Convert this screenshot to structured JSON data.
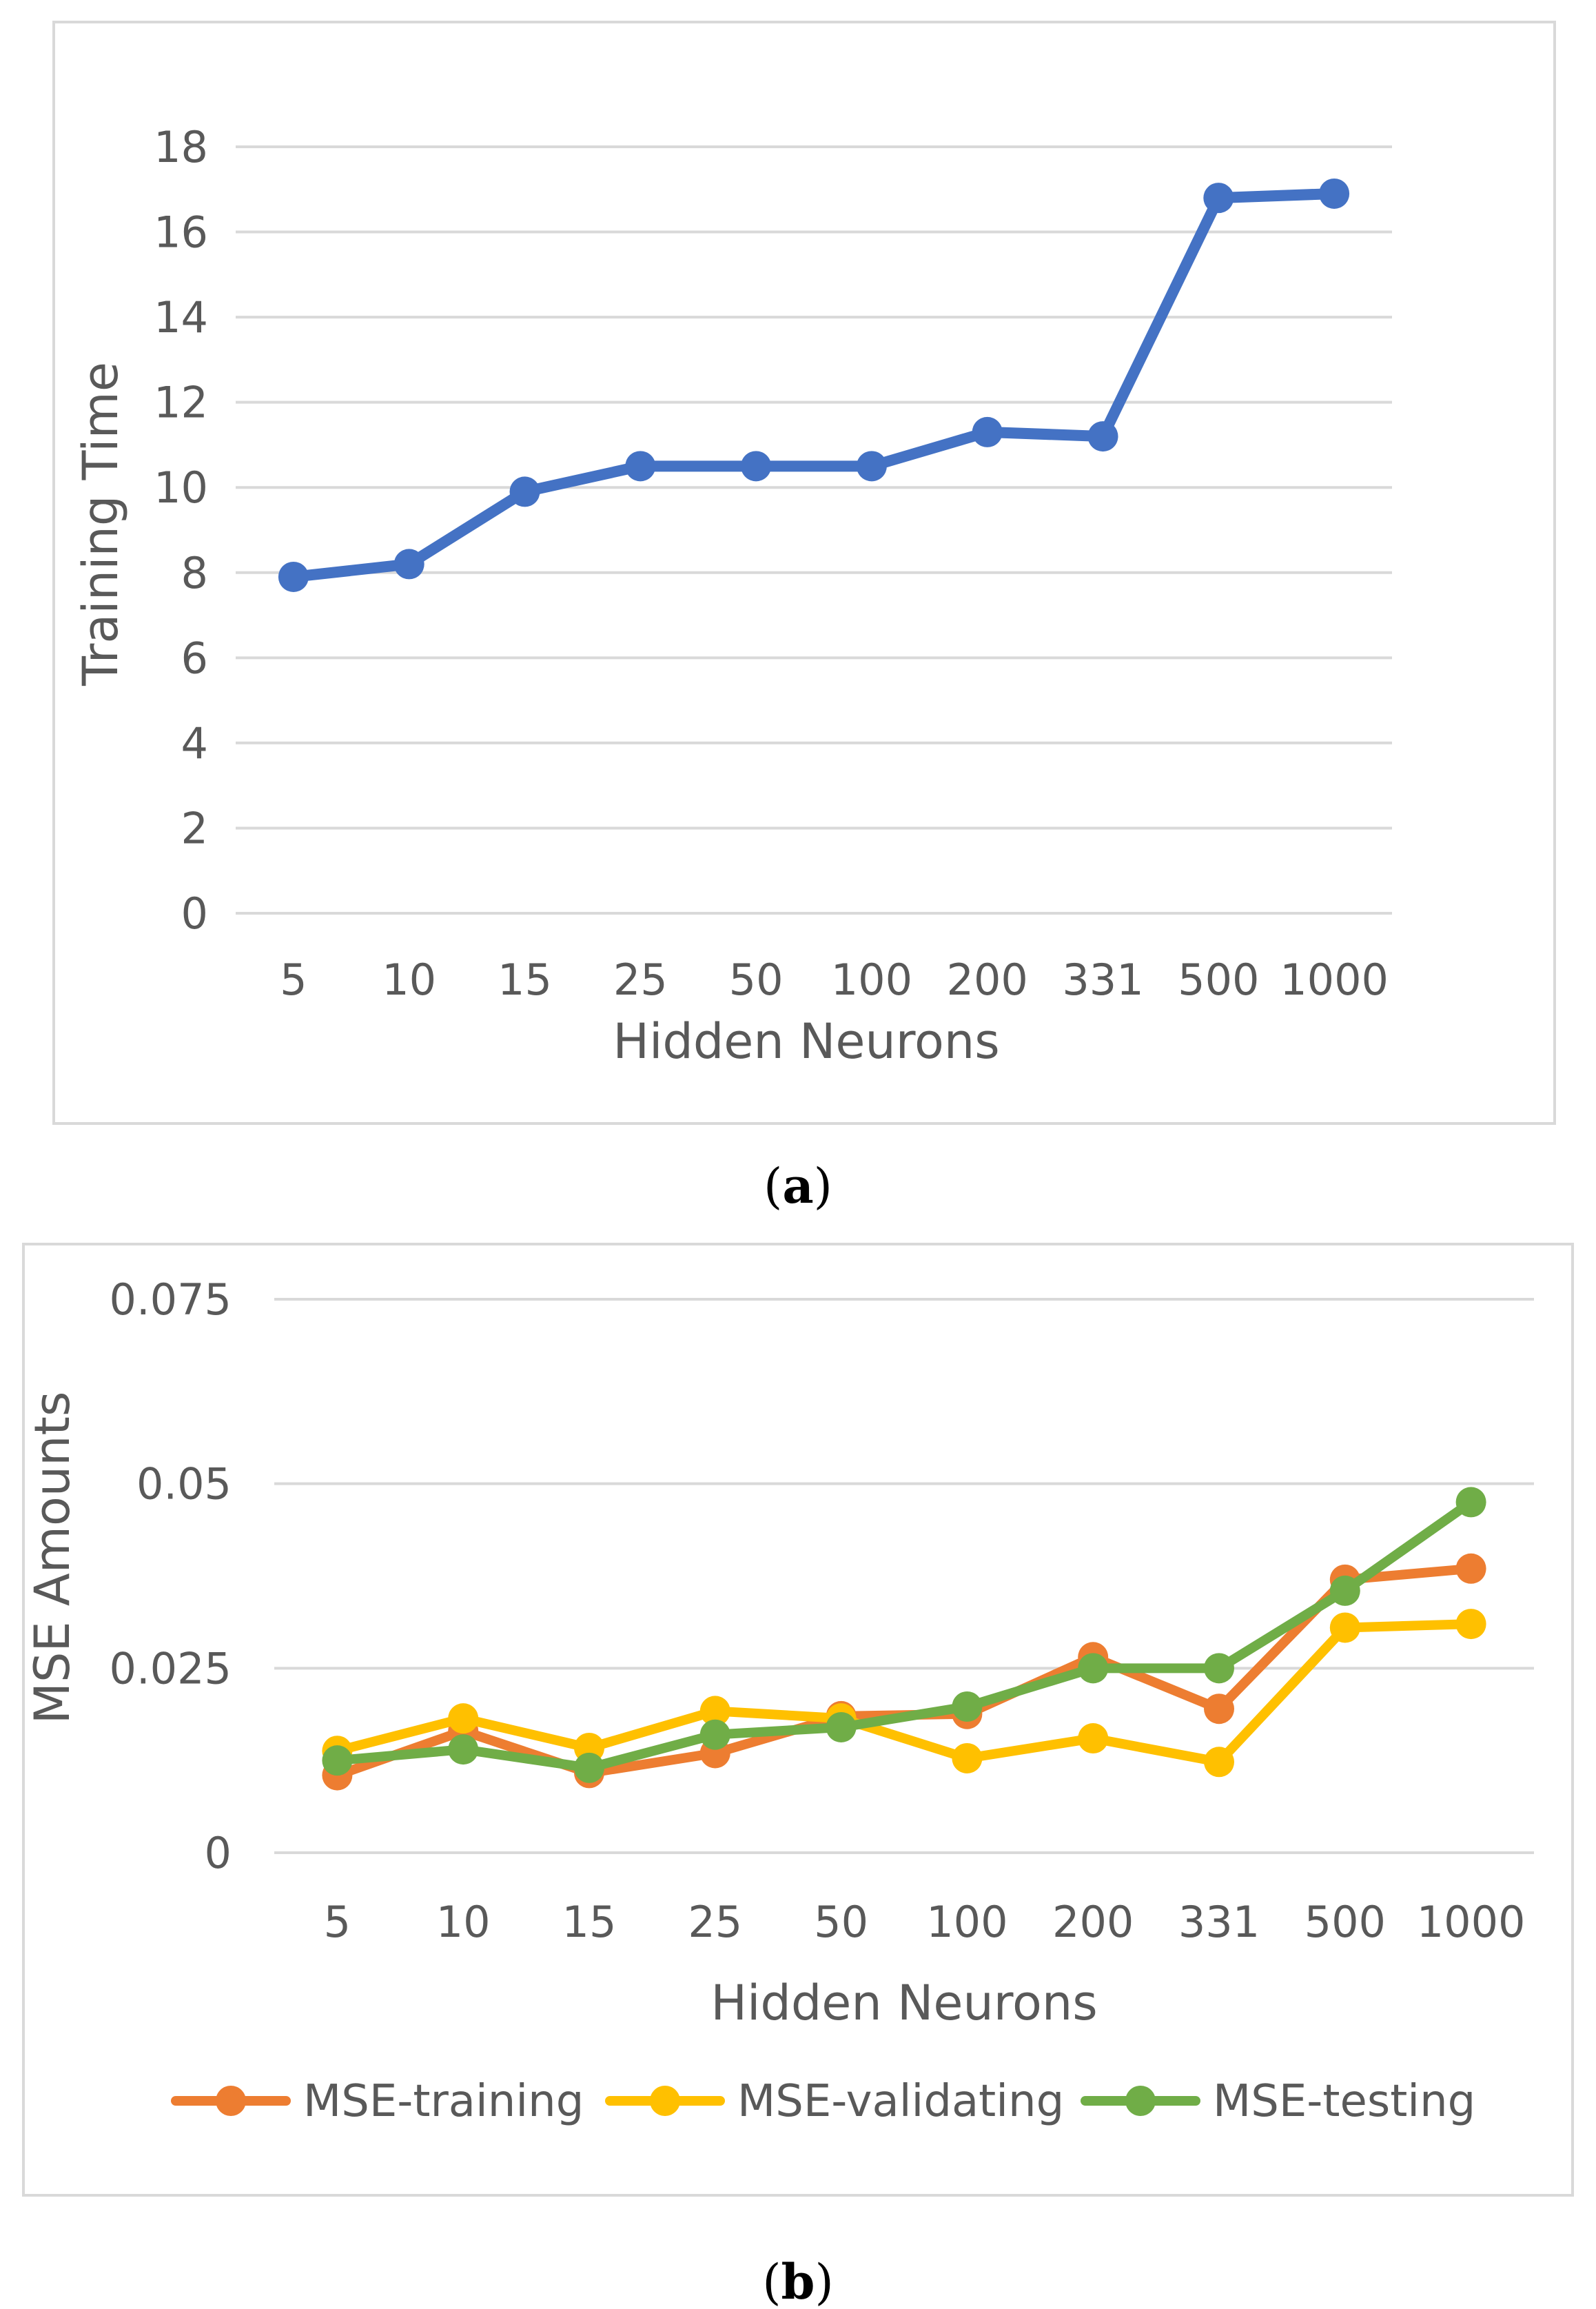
{
  "chart_data": [
    {
      "type": "line",
      "panel": "a",
      "caption_label": "a",
      "title": "",
      "xlabel": "Hidden Neurons",
      "ylabel": "Training Time",
      "categories": [
        "5",
        "10",
        "15",
        "25",
        "50",
        "100",
        "200",
        "331",
        "500",
        "1000"
      ],
      "yticks": [
        "0",
        "2",
        "4",
        "6",
        "8",
        "10",
        "12",
        "14",
        "16",
        "18"
      ],
      "ylim": [
        0,
        18
      ],
      "grid": true,
      "series": [
        {
          "name": "Training Time",
          "color": "#4472C4",
          "values": [
            7.9,
            8.2,
            9.9,
            10.5,
            10.5,
            10.5,
            11.3,
            11.2,
            16.8,
            16.9
          ]
        }
      ]
    },
    {
      "type": "line",
      "panel": "b",
      "caption_label": "b",
      "title": "",
      "xlabel": "Hidden Neurons",
      "ylabel": "MSE Amounts",
      "categories": [
        "5",
        "10",
        "15",
        "25",
        "50",
        "100",
        "200",
        "331",
        "500",
        "1000"
      ],
      "yticks": [
        "0",
        "0.025",
        "0.05",
        "0.075"
      ],
      "ylim": [
        0,
        0.075
      ],
      "grid": true,
      "legend_position": "bottom",
      "series": [
        {
          "name": "MSE-training",
          "color": "#ED7D31",
          "values": [
            0.0105,
            0.0165,
            0.0108,
            0.0135,
            0.0185,
            0.0188,
            0.0265,
            0.0195,
            0.037,
            0.0385
          ]
        },
        {
          "name": "MSE-validating",
          "color": "#FFC000",
          "values": [
            0.0138,
            0.0182,
            0.0142,
            0.0192,
            0.0182,
            0.0128,
            0.0155,
            0.0123,
            0.0305,
            0.031
          ]
        },
        {
          "name": "MSE-testing",
          "color": "#70AD47",
          "values": [
            0.0125,
            0.014,
            0.0115,
            0.016,
            0.017,
            0.0198,
            0.025,
            0.025,
            0.0355,
            0.0475
          ]
        }
      ]
    }
  ]
}
